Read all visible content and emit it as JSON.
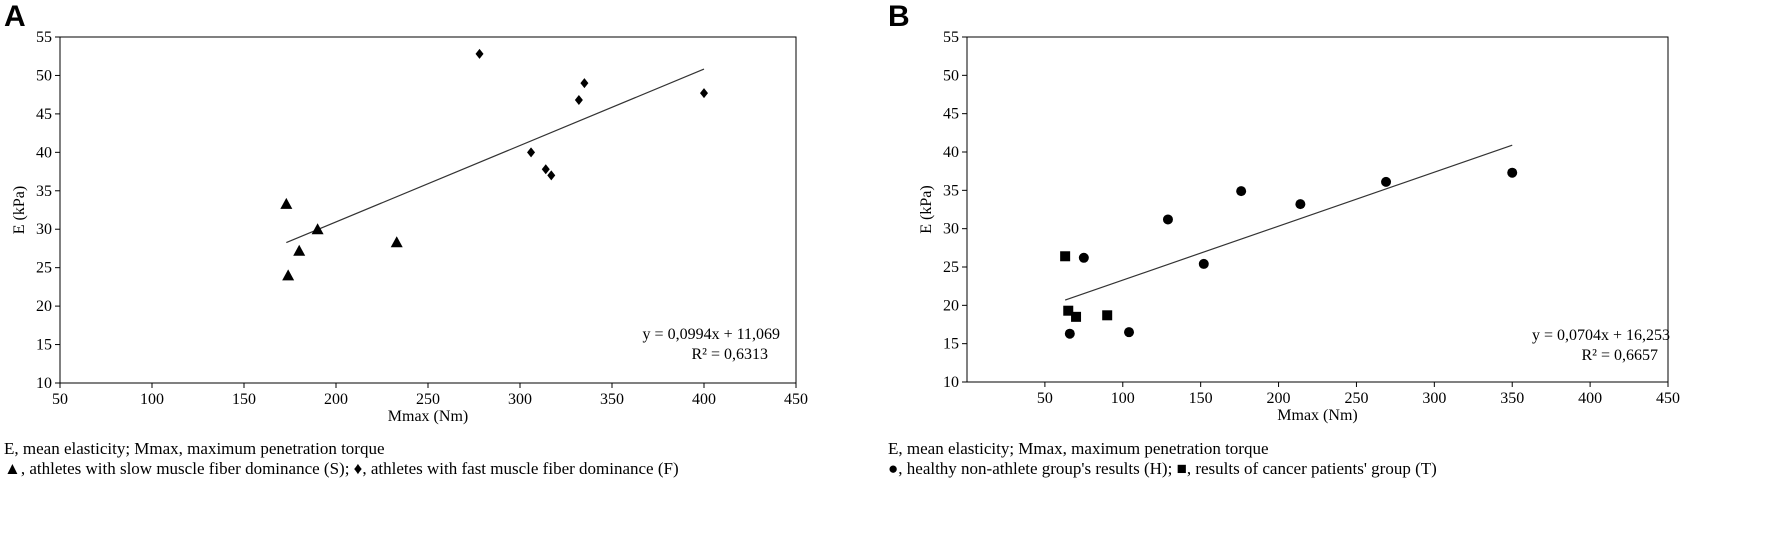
{
  "panels": {
    "a": {
      "letter": "A",
      "note_line1": "E, mean elasticity; Mmax, maximum penetration torque",
      "note_line2": "▲, athletes with slow muscle fiber dominance (S); ♦, athletes with fast muscle fiber dominance (F)"
    },
    "b": {
      "letter": "B",
      "note_line1": "E, mean elasticity; Mmax, maximum penetration torque",
      "note_line2": "●, healthy non-athlete group's results (H); ■, results of cancer patients' group (T)"
    }
  },
  "chart_data": [
    {
      "type": "scatter",
      "panel": "A",
      "title": "",
      "xlabel": "Mmax (Nm)",
      "ylabel": "E (kPa)",
      "xlim": [
        50,
        450
      ],
      "ylim": [
        10,
        55
      ],
      "x_ticks": [
        50,
        100,
        150,
        200,
        250,
        300,
        350,
        400,
        450
      ],
      "y_ticks": [
        10,
        15,
        20,
        25,
        30,
        35,
        40,
        45,
        50,
        55
      ],
      "grid": false,
      "series": [
        {
          "marker": "triangle",
          "color": "#000000",
          "points": [
            [
              173,
              33.3
            ],
            [
              174,
              24
            ],
            [
              180,
              27.2
            ],
            [
              190,
              30
            ],
            [
              233,
              28.3
            ]
          ]
        },
        {
          "marker": "diamond",
          "color": "#000000",
          "points": [
            [
              278,
              52.8
            ],
            [
              306,
              40
            ],
            [
              314,
              37.8
            ],
            [
              317,
              37
            ],
            [
              332,
              46.8
            ],
            [
              335,
              49
            ],
            [
              400,
              47.7
            ]
          ]
        }
      ],
      "trendline": {
        "slope": 0.0994,
        "intercept": 11.069,
        "x_range": [
          173,
          400
        ],
        "equation": "y = 0,0994x + 11,069",
        "r2": "R² = 0,6313"
      }
    },
    {
      "type": "scatter",
      "panel": "B",
      "title": "",
      "xlabel": "Mmax (Nm)",
      "ylabel": "E (kPa)",
      "xlim": [
        0,
        450
      ],
      "ylim": [
        10,
        55
      ],
      "x_ticks": [
        50,
        100,
        150,
        200,
        250,
        300,
        350,
        400,
        450
      ],
      "y_ticks": [
        10,
        15,
        20,
        25,
        30,
        35,
        40,
        45,
        50,
        55
      ],
      "grid": false,
      "series": [
        {
          "marker": "circle",
          "color": "#000000",
          "points": [
            [
              66,
              16.3
            ],
            [
              75,
              26.2
            ],
            [
              104,
              16.5
            ],
            [
              129,
              31.2
            ],
            [
              152,
              25.4
            ],
            [
              176,
              34.9
            ],
            [
              214,
              33.2
            ],
            [
              269,
              36.1
            ],
            [
              350,
              37.3
            ]
          ]
        },
        {
          "marker": "square",
          "color": "#000000",
          "points": [
            [
              63,
              26.4
            ],
            [
              65,
              19.3
            ],
            [
              70,
              18.5
            ],
            [
              90,
              18.7
            ]
          ]
        }
      ],
      "trendline": {
        "slope": 0.0704,
        "intercept": 16.253,
        "x_range": [
          63,
          350
        ],
        "equation": "y = 0,0704x + 16,253",
        "r2": "R² = 0,6657"
      }
    }
  ]
}
